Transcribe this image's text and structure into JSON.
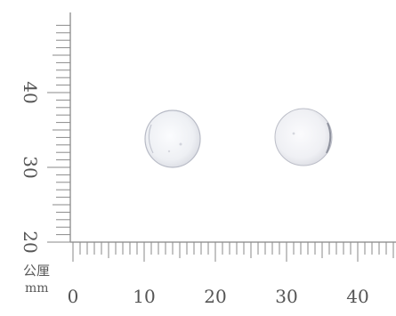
{
  "ruler": {
    "unit_cn": "公厘",
    "unit_en": "mm",
    "bottom": {
      "min": 0,
      "max": 45,
      "labels": [
        "0",
        "10",
        "20",
        "30",
        "40"
      ]
    },
    "left": {
      "min": 20,
      "max": 49,
      "labels": [
        "20",
        "30",
        "40"
      ]
    },
    "color": "#8a8a8a"
  },
  "tablets": {
    "count": 2,
    "color": "#f2f3f6",
    "shadow": "#c9cbd3"
  }
}
